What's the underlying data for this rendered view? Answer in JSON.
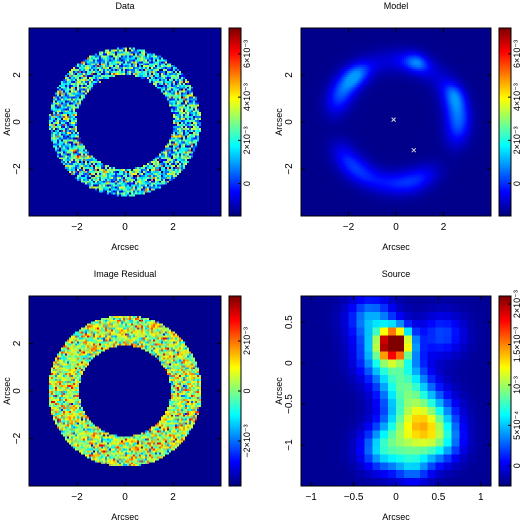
{
  "chart_data": [
    {
      "type": "heatmap",
      "title": "Data",
      "xlabel": "Arcsec",
      "ylabel": "Arcsec",
      "xlim": [
        -4,
        4
      ],
      "ylim": [
        -4,
        4
      ],
      "xticks": [
        -2,
        0,
        2
      ],
      "xtick_labels": [
        "−2",
        "0",
        "2"
      ],
      "yticks": [
        -2,
        0,
        2
      ],
      "ytick_labels": [
        "−2",
        "0",
        "2"
      ],
      "show_xticks": true,
      "colormap": "jet",
      "colorbar": {
        "range": [
          -0.0015,
          0.0072
        ],
        "ticks": [
          0,
          0.002,
          0.004,
          0.006
        ],
        "labels": [
          "0",
          "2×10⁻³",
          "4×10⁻³",
          "6×10⁻³"
        ]
      },
      "content": {
        "kind": "noisy-ring",
        "inner_radius": 2.0,
        "outer_radius": 3.15,
        "background": -0.0013,
        "noise": 0.0016,
        "mean": 0.0016
      }
    },
    {
      "type": "heatmap",
      "title": "Model",
      "xlabel": "Arcsec",
      "ylabel": "Arcsec",
      "xlim": [
        -4,
        4
      ],
      "ylim": [
        -4,
        4
      ],
      "xticks": [
        -2,
        0,
        2
      ],
      "xtick_labels": [
        "−2",
        "0",
        "2"
      ],
      "yticks": [
        -2,
        0,
        2
      ],
      "ytick_labels": [
        "−2",
        "0",
        "2"
      ],
      "show_xticks": true,
      "colormap": "jet",
      "colorbar": {
        "range": [
          -0.0015,
          0.0072
        ],
        "ticks": [
          0,
          0.002,
          0.004,
          0.006
        ],
        "labels": [
          "0",
          "2×10⁻³",
          "4×10⁻³",
          "6×10⁻³"
        ]
      },
      "markers": [
        {
          "x": -0.1,
          "y": 0.1
        },
        {
          "x": 0.75,
          "y": -1.2
        }
      ],
      "content": {
        "kind": "smooth-ring",
        "inner_radius": 2.0,
        "outer_radius": 3.2,
        "background": -0.0014,
        "peak": 0.0009
      }
    },
    {
      "type": "heatmap",
      "title": "Image Residual",
      "xlabel": "Arcsec",
      "ylabel": "Arcsec",
      "xlim": [
        -4,
        4
      ],
      "ylim": [
        -4,
        4
      ],
      "xticks": [
        -2,
        0,
        2
      ],
      "xtick_labels": [
        "−2",
        "0",
        "2"
      ],
      "yticks": [
        -2,
        0,
        2
      ],
      "ytick_labels": [
        "−2",
        "0",
        "2"
      ],
      "show_xticks": true,
      "colormap": "jet",
      "colorbar": {
        "range": [
          -0.0038,
          0.0038
        ],
        "ticks": [
          -0.002,
          0,
          0.002
        ],
        "labels": [
          "−2×10⁻³",
          "0",
          "2×10⁻³"
        ]
      },
      "content": {
        "kind": "residual-ring",
        "inner_radius": 1.9,
        "outer_radius": 3.2,
        "background": -0.0037,
        "noise": 0.0011,
        "mean": 0.0004
      }
    },
    {
      "type": "heatmap",
      "title": "Source",
      "xlabel": "Arcsec",
      "ylabel": "Arcsec",
      "xlim": [
        -1.12,
        1.12
      ],
      "ylim": [
        -1.5,
        0.82
      ],
      "xticks": [
        -1,
        -0.5,
        0,
        0.5,
        1
      ],
      "xtick_labels": [
        "−1",
        "−0.5",
        "0",
        "0.5",
        "1"
      ],
      "yticks": [
        -1,
        -0.5,
        0,
        0.5
      ],
      "ytick_labels": [
        "−1",
        "−0.5",
        "0",
        "0.5"
      ],
      "show_xticks": true,
      "colormap": "jet",
      "colorbar": {
        "range": [
          -0.00025,
          0.0021
        ],
        "ticks": [
          0,
          0.0005,
          0.001,
          0.0015,
          0.002
        ],
        "labels": [
          "0",
          "5×10⁻⁴",
          "10⁻³",
          "1.5×10⁻³",
          "2×10⁻³"
        ]
      },
      "content": {
        "kind": "pixelated-source",
        "background": -0.0002
      }
    }
  ]
}
